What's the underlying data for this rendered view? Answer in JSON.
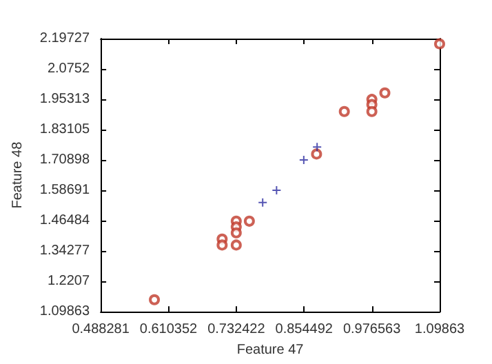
{
  "chart_data": {
    "type": "scatter",
    "xlabel": "Feature 47",
    "ylabel": "Feature 48",
    "xlim": [
      0.488281,
      1.09863
    ],
    "xticks": [
      0.488281,
      0.610352,
      0.732422,
      0.854492,
      0.976563,
      1.09863
    ],
    "ylim": [
      1.09863,
      2.19727
    ],
    "yticks": [
      1.09863,
      1.2207,
      1.34277,
      1.46484,
      1.58691,
      1.70898,
      1.83105,
      1.95313,
      2.0752,
      2.19727
    ],
    "grid": false,
    "series": [
      {
        "color": "#c0392b",
        "marker": "circle",
        "x": [
          1.0986,
          1.0,
          0.9766,
          0.9766,
          0.9766,
          0.927,
          0.877,
          0.756,
          0.7324,
          0.7324,
          0.7324,
          0.7324,
          0.707,
          0.707,
          0.585
        ],
        "values": [
          2.176,
          1.979,
          1.953,
          1.932,
          1.904,
          1.904,
          1.733,
          1.463,
          1.463,
          1.44,
          1.416,
          1.367,
          1.391,
          1.367,
          1.147
        ]
      },
      {
        "color": "#2a2aa0",
        "marker": "cross",
        "x": [
          0.78,
          0.805,
          0.854,
          0.878
        ],
        "values": [
          1.538,
          1.587,
          1.709,
          1.761
        ]
      }
    ]
  }
}
